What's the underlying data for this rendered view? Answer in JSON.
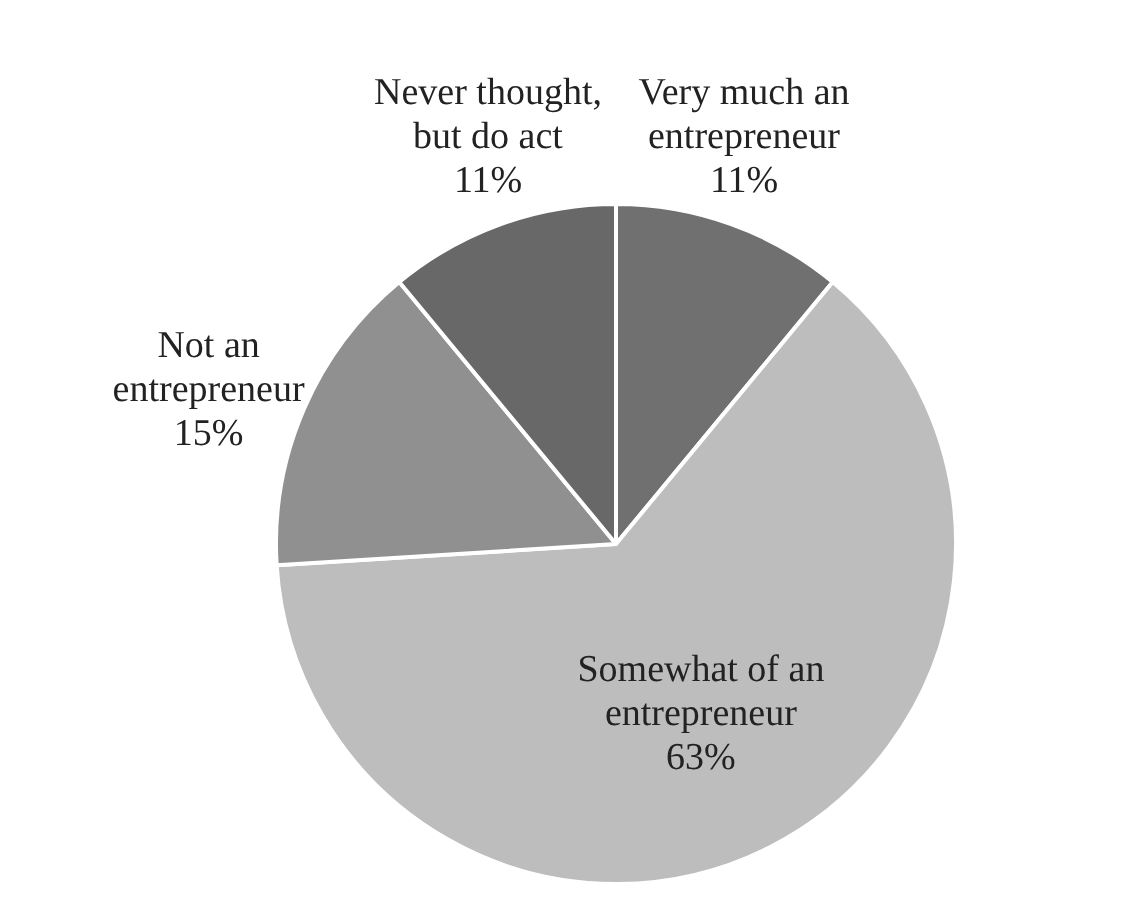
{
  "chart_data": {
    "type": "pie",
    "categories": [
      "Very much an entrepreneur",
      "Somewhat of an entrepreneur",
      "Not an entrepreneur",
      "Never thought, but do act"
    ],
    "values": [
      11,
      63,
      15,
      11
    ],
    "value_labels": [
      "11%",
      "63%",
      "15%",
      "11%"
    ],
    "colors": [
      "#707070",
      "#bdbdbd",
      "#909090",
      "#686868"
    ]
  }
}
